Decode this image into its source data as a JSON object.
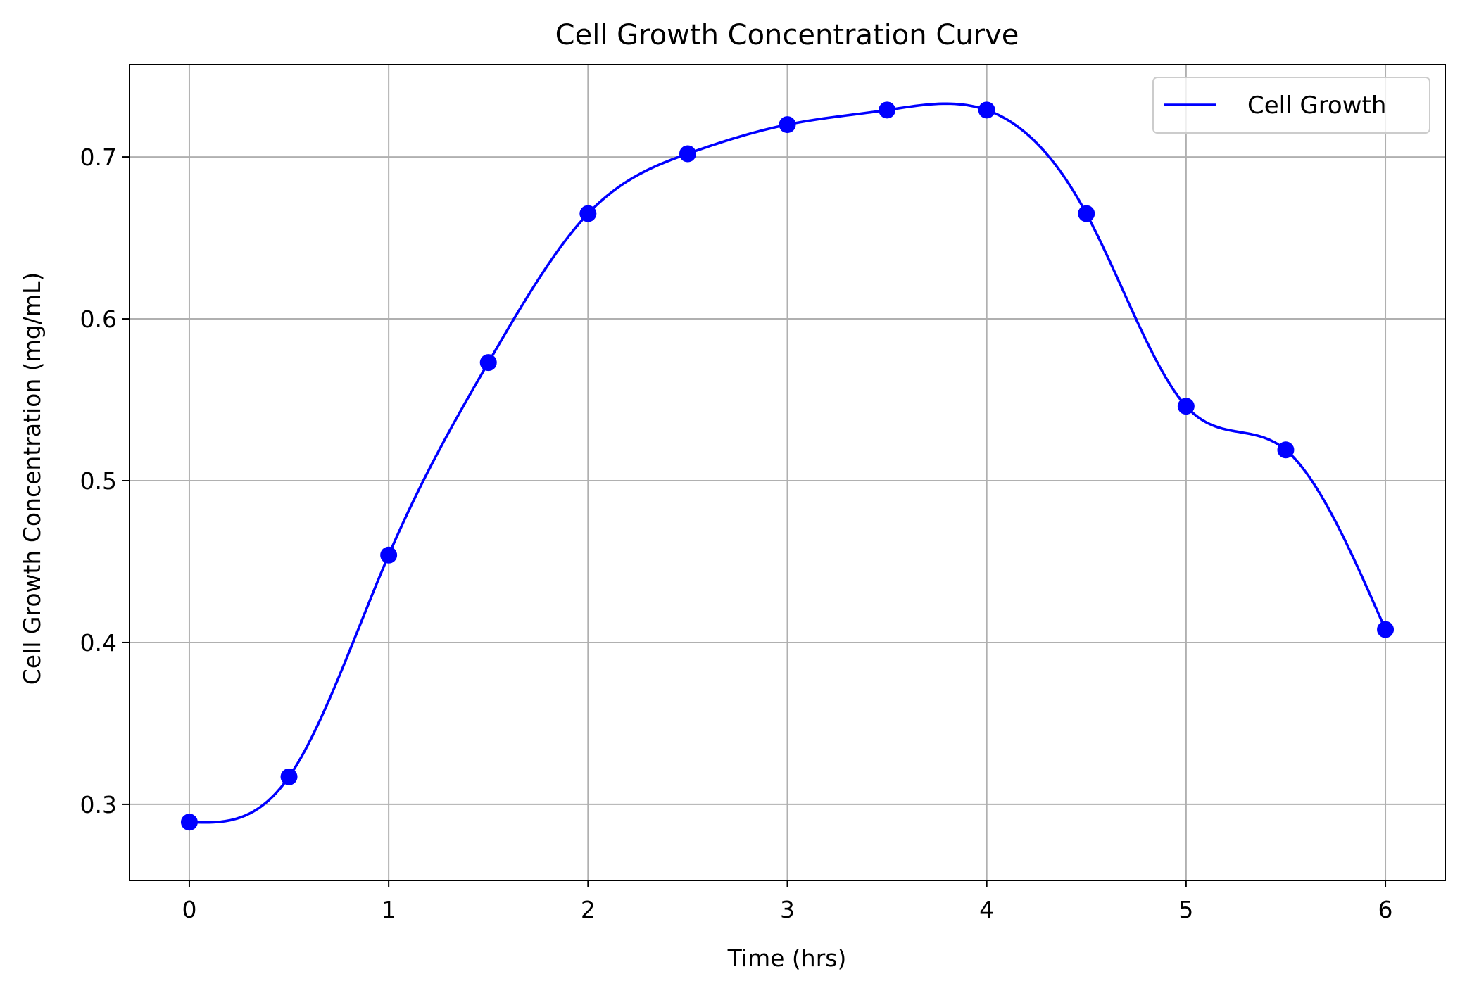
{
  "chart_data": {
    "type": "line",
    "title": "Cell Growth Concentration Curve",
    "xlabel": "Time (hrs)",
    "ylabel": "Cell Growth Concentration (mg/mL)",
    "xlim": [
      -0.3,
      6.3
    ],
    "ylim": [
      0.253,
      0.757
    ],
    "x_ticks": [
      0,
      1,
      2,
      3,
      4,
      5,
      6
    ],
    "x_tick_labels": [
      "0",
      "1",
      "2",
      "3",
      "4",
      "5",
      "6"
    ],
    "y_ticks": [
      0.3,
      0.4,
      0.5,
      0.6,
      0.7
    ],
    "y_tick_labels": [
      "0.3",
      "0.4",
      "0.5",
      "0.6",
      "0.7"
    ],
    "grid": true,
    "legend_position": "top-right",
    "series": [
      {
        "name": "Cell Growth",
        "color": "#0000ff",
        "markers": true,
        "x": [
          0,
          0.5,
          1,
          1.5,
          2,
          2.5,
          3,
          3.5,
          4,
          4.5,
          5,
          5.5,
          6
        ],
        "y": [
          0.289,
          0.317,
          0.454,
          0.573,
          0.665,
          0.702,
          0.72,
          0.729,
          0.729,
          0.665,
          0.546,
          0.519,
          0.408
        ]
      }
    ]
  }
}
